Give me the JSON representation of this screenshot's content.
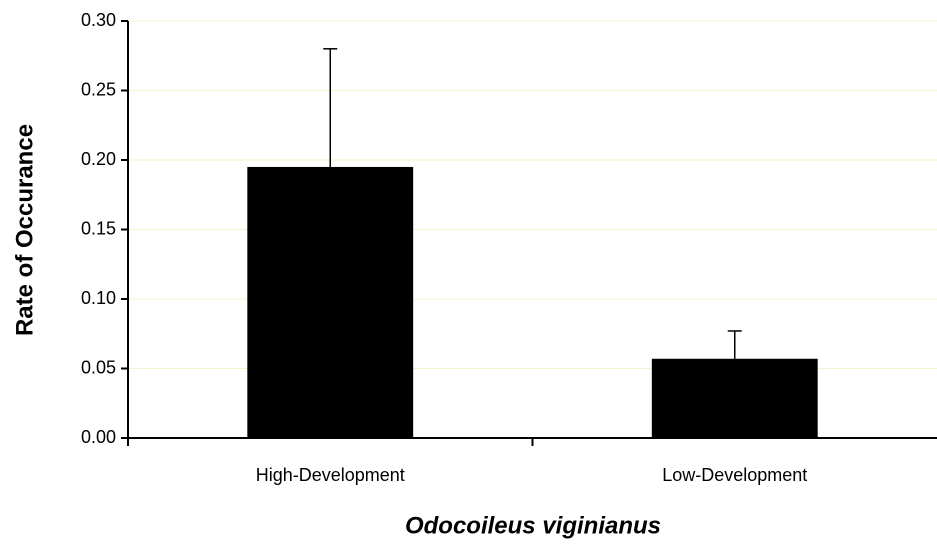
{
  "chart_data": {
    "type": "bar",
    "x_label": "Odocoileus viginianus",
    "y_label": "Rate of Occurance",
    "categories": [
      "High-Development",
      "Low-Development"
    ],
    "values": [
      0.195,
      0.057
    ],
    "errors": [
      0.085,
      0.02
    ],
    "color": "#000000",
    "ylim": [
      0,
      0.3
    ],
    "yticks": [
      {
        "value": 0,
        "label": "0.00"
      },
      {
        "value": 0.05,
        "label": "0.05"
      },
      {
        "value": 0.1,
        "label": "0.10"
      },
      {
        "value": 0.15,
        "label": "0.15"
      },
      {
        "value": 0.2,
        "label": "0.20"
      },
      {
        "value": 0.25,
        "label": "0.25"
      },
      {
        "value": 0.3,
        "label": "0.30"
      }
    ],
    "grid": true,
    "grid_color": "#f3f3d0"
  }
}
